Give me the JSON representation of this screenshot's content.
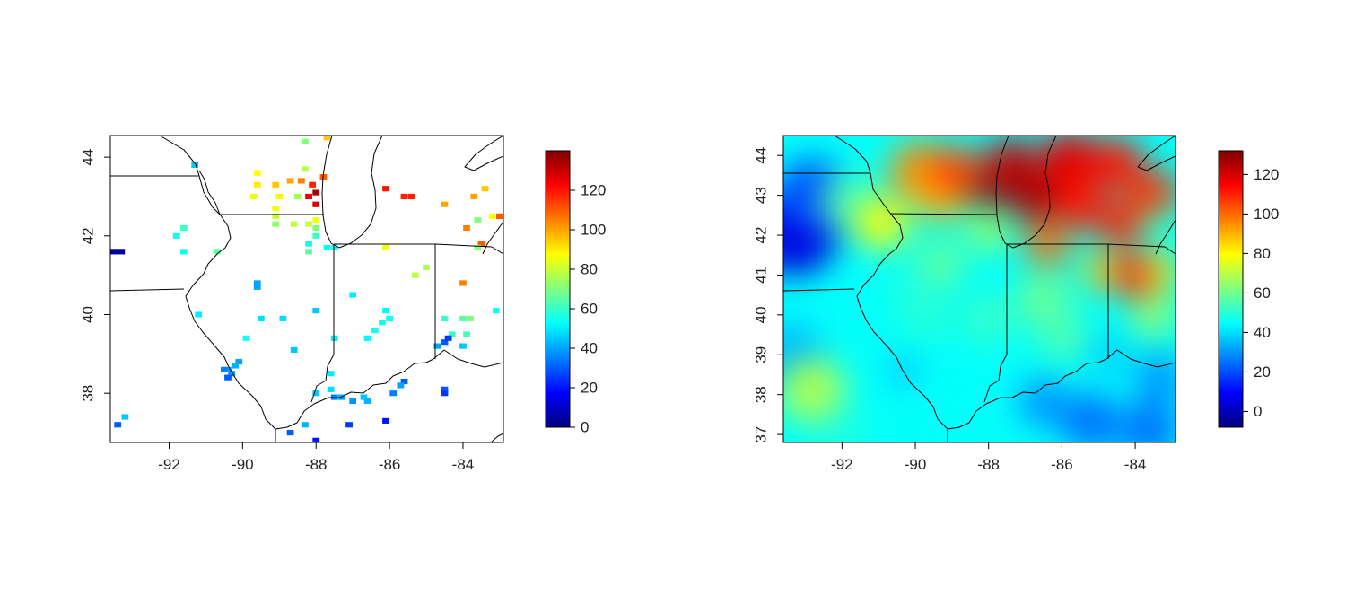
{
  "chart_data": [
    {
      "type": "heatmap",
      "title": "",
      "xlabel": "",
      "ylabel": "",
      "xlim": [
        -93.6,
        -82.9
      ],
      "ylim": [
        36.75,
        44.55
      ],
      "x_ticks": [
        -92,
        -90,
        -88,
        -86,
        -84
      ],
      "y_ticks": [
        38,
        40,
        42,
        44
      ],
      "colorbar": {
        "min": 0,
        "max": 140,
        "ticks": [
          0,
          20,
          40,
          60,
          80,
          100,
          120
        ]
      },
      "grid": false,
      "cells": [
        [
          -91.3,
          43.8,
          45
        ],
        [
          -88.3,
          44.4,
          70
        ],
        [
          -87.7,
          44.5,
          95
        ],
        [
          -89.6,
          43.6,
          88
        ],
        [
          -89.6,
          43.3,
          90
        ],
        [
          -89.1,
          43.3,
          95
        ],
        [
          -88.7,
          43.4,
          100
        ],
        [
          -88.4,
          43.4,
          105
        ],
        [
          -88.1,
          43.3,
          118
        ],
        [
          -88.0,
          43.1,
          135
        ],
        [
          -88.2,
          43.0,
          125
        ],
        [
          -88.0,
          42.8,
          128
        ],
        [
          -87.8,
          43.5,
          110
        ],
        [
          -86.1,
          43.2,
          120
        ],
        [
          -85.6,
          43.0,
          118
        ],
        [
          -85.4,
          43.0,
          118
        ],
        [
          -89.7,
          43.0,
          85
        ],
        [
          -89.0,
          43.0,
          88
        ],
        [
          -88.5,
          43.0,
          75
        ],
        [
          -88.3,
          43.7,
          78
        ],
        [
          -89.1,
          42.7,
          85
        ],
        [
          -89.1,
          42.5,
          80
        ],
        [
          -89.1,
          42.3,
          72
        ],
        [
          -88.6,
          42.3,
          78
        ],
        [
          -88.2,
          42.3,
          80
        ],
        [
          -88.0,
          42.4,
          85
        ],
        [
          -88.0,
          42.2,
          70
        ],
        [
          -88.0,
          42.0,
          60
        ],
        [
          -88.2,
          41.8,
          55
        ],
        [
          -88.2,
          41.6,
          65
        ],
        [
          -87.7,
          41.7,
          52
        ],
        [
          -87.5,
          41.7,
          55
        ],
        [
          -86.1,
          41.7,
          85
        ],
        [
          -83.4,
          43.2,
          95
        ],
        [
          -83.7,
          43.0,
          100
        ],
        [
          -84.5,
          42.8,
          100
        ],
        [
          -83.0,
          42.5,
          110
        ],
        [
          -83.2,
          42.5,
          88
        ],
        [
          -83.6,
          42.4,
          70
        ],
        [
          -83.9,
          42.2,
          105
        ],
        [
          -83.5,
          41.8,
          110
        ],
        [
          -83.6,
          41.7,
          72
        ],
        [
          -84.0,
          40.8,
          105
        ],
        [
          -85.0,
          41.2,
          75
        ],
        [
          -85.3,
          41.0,
          78
        ],
        [
          -91.8,
          42.0,
          55
        ],
        [
          -91.6,
          42.2,
          60
        ],
        [
          -91.6,
          41.6,
          55
        ],
        [
          -93.5,
          41.6,
          5
        ],
        [
          -93.3,
          41.6,
          5
        ],
        [
          -90.7,
          41.6,
          65
        ],
        [
          -89.6,
          40.8,
          40
        ],
        [
          -89.6,
          40.7,
          40
        ],
        [
          -87.0,
          40.5,
          50
        ],
        [
          -86.1,
          40.1,
          52
        ],
        [
          -86.0,
          39.9,
          55
        ],
        [
          -86.2,
          39.8,
          55
        ],
        [
          -86.4,
          39.6,
          55
        ],
        [
          -86.6,
          39.4,
          52
        ],
        [
          -88.0,
          40.1,
          45
        ],
        [
          -89.5,
          39.9,
          48
        ],
        [
          -88.9,
          39.9,
          48
        ],
        [
          -91.2,
          40.0,
          50
        ],
        [
          -89.9,
          39.4,
          55
        ],
        [
          -87.5,
          39.4,
          50
        ],
        [
          -88.6,
          39.1,
          45
        ],
        [
          -84.5,
          39.9,
          60
        ],
        [
          -84.0,
          39.9,
          65
        ],
        [
          -83.8,
          39.9,
          70
        ],
        [
          -83.9,
          39.5,
          62
        ],
        [
          -84.3,
          39.5,
          60
        ],
        [
          -84.5,
          39.3,
          30
        ],
        [
          -84.7,
          39.2,
          40
        ],
        [
          -84.0,
          39.2,
          45
        ],
        [
          -84.4,
          39.4,
          25
        ],
        [
          -83.1,
          40.1,
          55
        ],
        [
          -90.1,
          38.8,
          40
        ],
        [
          -90.2,
          38.7,
          42
        ],
        [
          -90.4,
          38.6,
          40
        ],
        [
          -90.5,
          38.6,
          35
        ],
        [
          -90.3,
          38.5,
          38
        ],
        [
          -90.4,
          38.4,
          30
        ],
        [
          -87.6,
          38.5,
          50
        ],
        [
          -87.6,
          38.1,
          48
        ],
        [
          -87.5,
          37.9,
          35
        ],
        [
          -87.3,
          37.9,
          40
        ],
        [
          -87.0,
          37.8,
          38
        ],
        [
          -86.7,
          37.9,
          45
        ],
        [
          -86.6,
          37.8,
          42
        ],
        [
          -85.6,
          38.3,
          30
        ],
        [
          -85.7,
          38.2,
          40
        ],
        [
          -85.9,
          38.0,
          35
        ],
        [
          -84.5,
          38.1,
          30
        ],
        [
          -84.5,
          38.0,
          25
        ],
        [
          -88.0,
          38.0,
          45
        ],
        [
          -88.3,
          37.2,
          42
        ],
        [
          -88.7,
          37.0,
          30
        ],
        [
          -87.1,
          37.2,
          25
        ],
        [
          -86.1,
          37.3,
          20
        ],
        [
          -88.0,
          36.8,
          20
        ],
        [
          -93.2,
          37.4,
          45
        ],
        [
          -93.4,
          37.2,
          30
        ]
      ]
    },
    {
      "type": "heatmap",
      "title": "",
      "xlabel": "",
      "ylabel": "",
      "xlim": [
        -93.6,
        -82.9
      ],
      "ylim": [
        36.8,
        44.5
      ],
      "x_ticks": [
        -92,
        -90,
        -88,
        -86,
        -84
      ],
      "y_ticks": [
        37,
        38,
        39,
        40,
        41,
        42,
        43,
        44
      ],
      "colorbar": {
        "min": -8,
        "max": 132,
        "ticks": [
          0,
          20,
          40,
          60,
          80,
          100,
          120
        ]
      },
      "grid": false,
      "background_value": 45,
      "surface_points": [
        [
          -93.3,
          42.1,
          5,
          1.2
        ],
        [
          -92.8,
          43.0,
          20,
          1.0
        ],
        [
          -93.4,
          39.0,
          35,
          0.9
        ],
        [
          -92.8,
          38.1,
          68,
          0.9
        ],
        [
          -91.8,
          42.8,
          55,
          0.8
        ],
        [
          -90.9,
          42.3,
          80,
          0.7
        ],
        [
          -89.9,
          43.6,
          95,
          0.8
        ],
        [
          -89.3,
          43.0,
          90,
          0.7
        ],
        [
          -88.9,
          43.6,
          105,
          0.7
        ],
        [
          -88.0,
          43.1,
          132,
          0.45
        ],
        [
          -87.4,
          43.8,
          122,
          0.7
        ],
        [
          -86.8,
          43.0,
          126,
          0.7
        ],
        [
          -85.8,
          43.9,
          118,
          0.8
        ],
        [
          -85.5,
          42.8,
          112,
          0.7
        ],
        [
          -84.5,
          43.8,
          112,
          0.7
        ],
        [
          -83.5,
          43.0,
          108,
          0.7
        ],
        [
          -84.4,
          42.3,
          110,
          0.6
        ],
        [
          -83.4,
          42.3,
          55,
          0.45
        ],
        [
          -86.4,
          41.8,
          100,
          0.6
        ],
        [
          -84.0,
          41.0,
          112,
          0.6
        ],
        [
          -84.9,
          41.1,
          88,
          0.5
        ],
        [
          -83.3,
          41.1,
          85,
          0.5
        ],
        [
          -83.5,
          40.0,
          65,
          0.6
        ],
        [
          -88.0,
          42.1,
          70,
          0.5
        ],
        [
          -89.3,
          41.3,
          60,
          0.6
        ],
        [
          -90.2,
          40.7,
          48,
          0.6
        ],
        [
          -89.7,
          40.0,
          50,
          0.7
        ],
        [
          -88.0,
          39.9,
          52,
          0.7
        ],
        [
          -86.5,
          40.4,
          60,
          0.7
        ],
        [
          -86.0,
          39.5,
          55,
          0.7
        ],
        [
          -90.3,
          38.6,
          32,
          0.35
        ],
        [
          -89.1,
          38.3,
          45,
          0.6
        ],
        [
          -88.0,
          37.9,
          45,
          0.6
        ],
        [
          -86.5,
          37.8,
          30,
          0.7
        ],
        [
          -85.2,
          37.3,
          25,
          0.8
        ],
        [
          -83.6,
          37.1,
          25,
          0.8
        ],
        [
          -84.7,
          39.0,
          38,
          0.6
        ],
        [
          -83.3,
          38.4,
          30,
          0.7
        ],
        [
          -92.0,
          36.9,
          48,
          0.8
        ],
        [
          -89.6,
          37.0,
          45,
          0.7
        ]
      ]
    }
  ]
}
